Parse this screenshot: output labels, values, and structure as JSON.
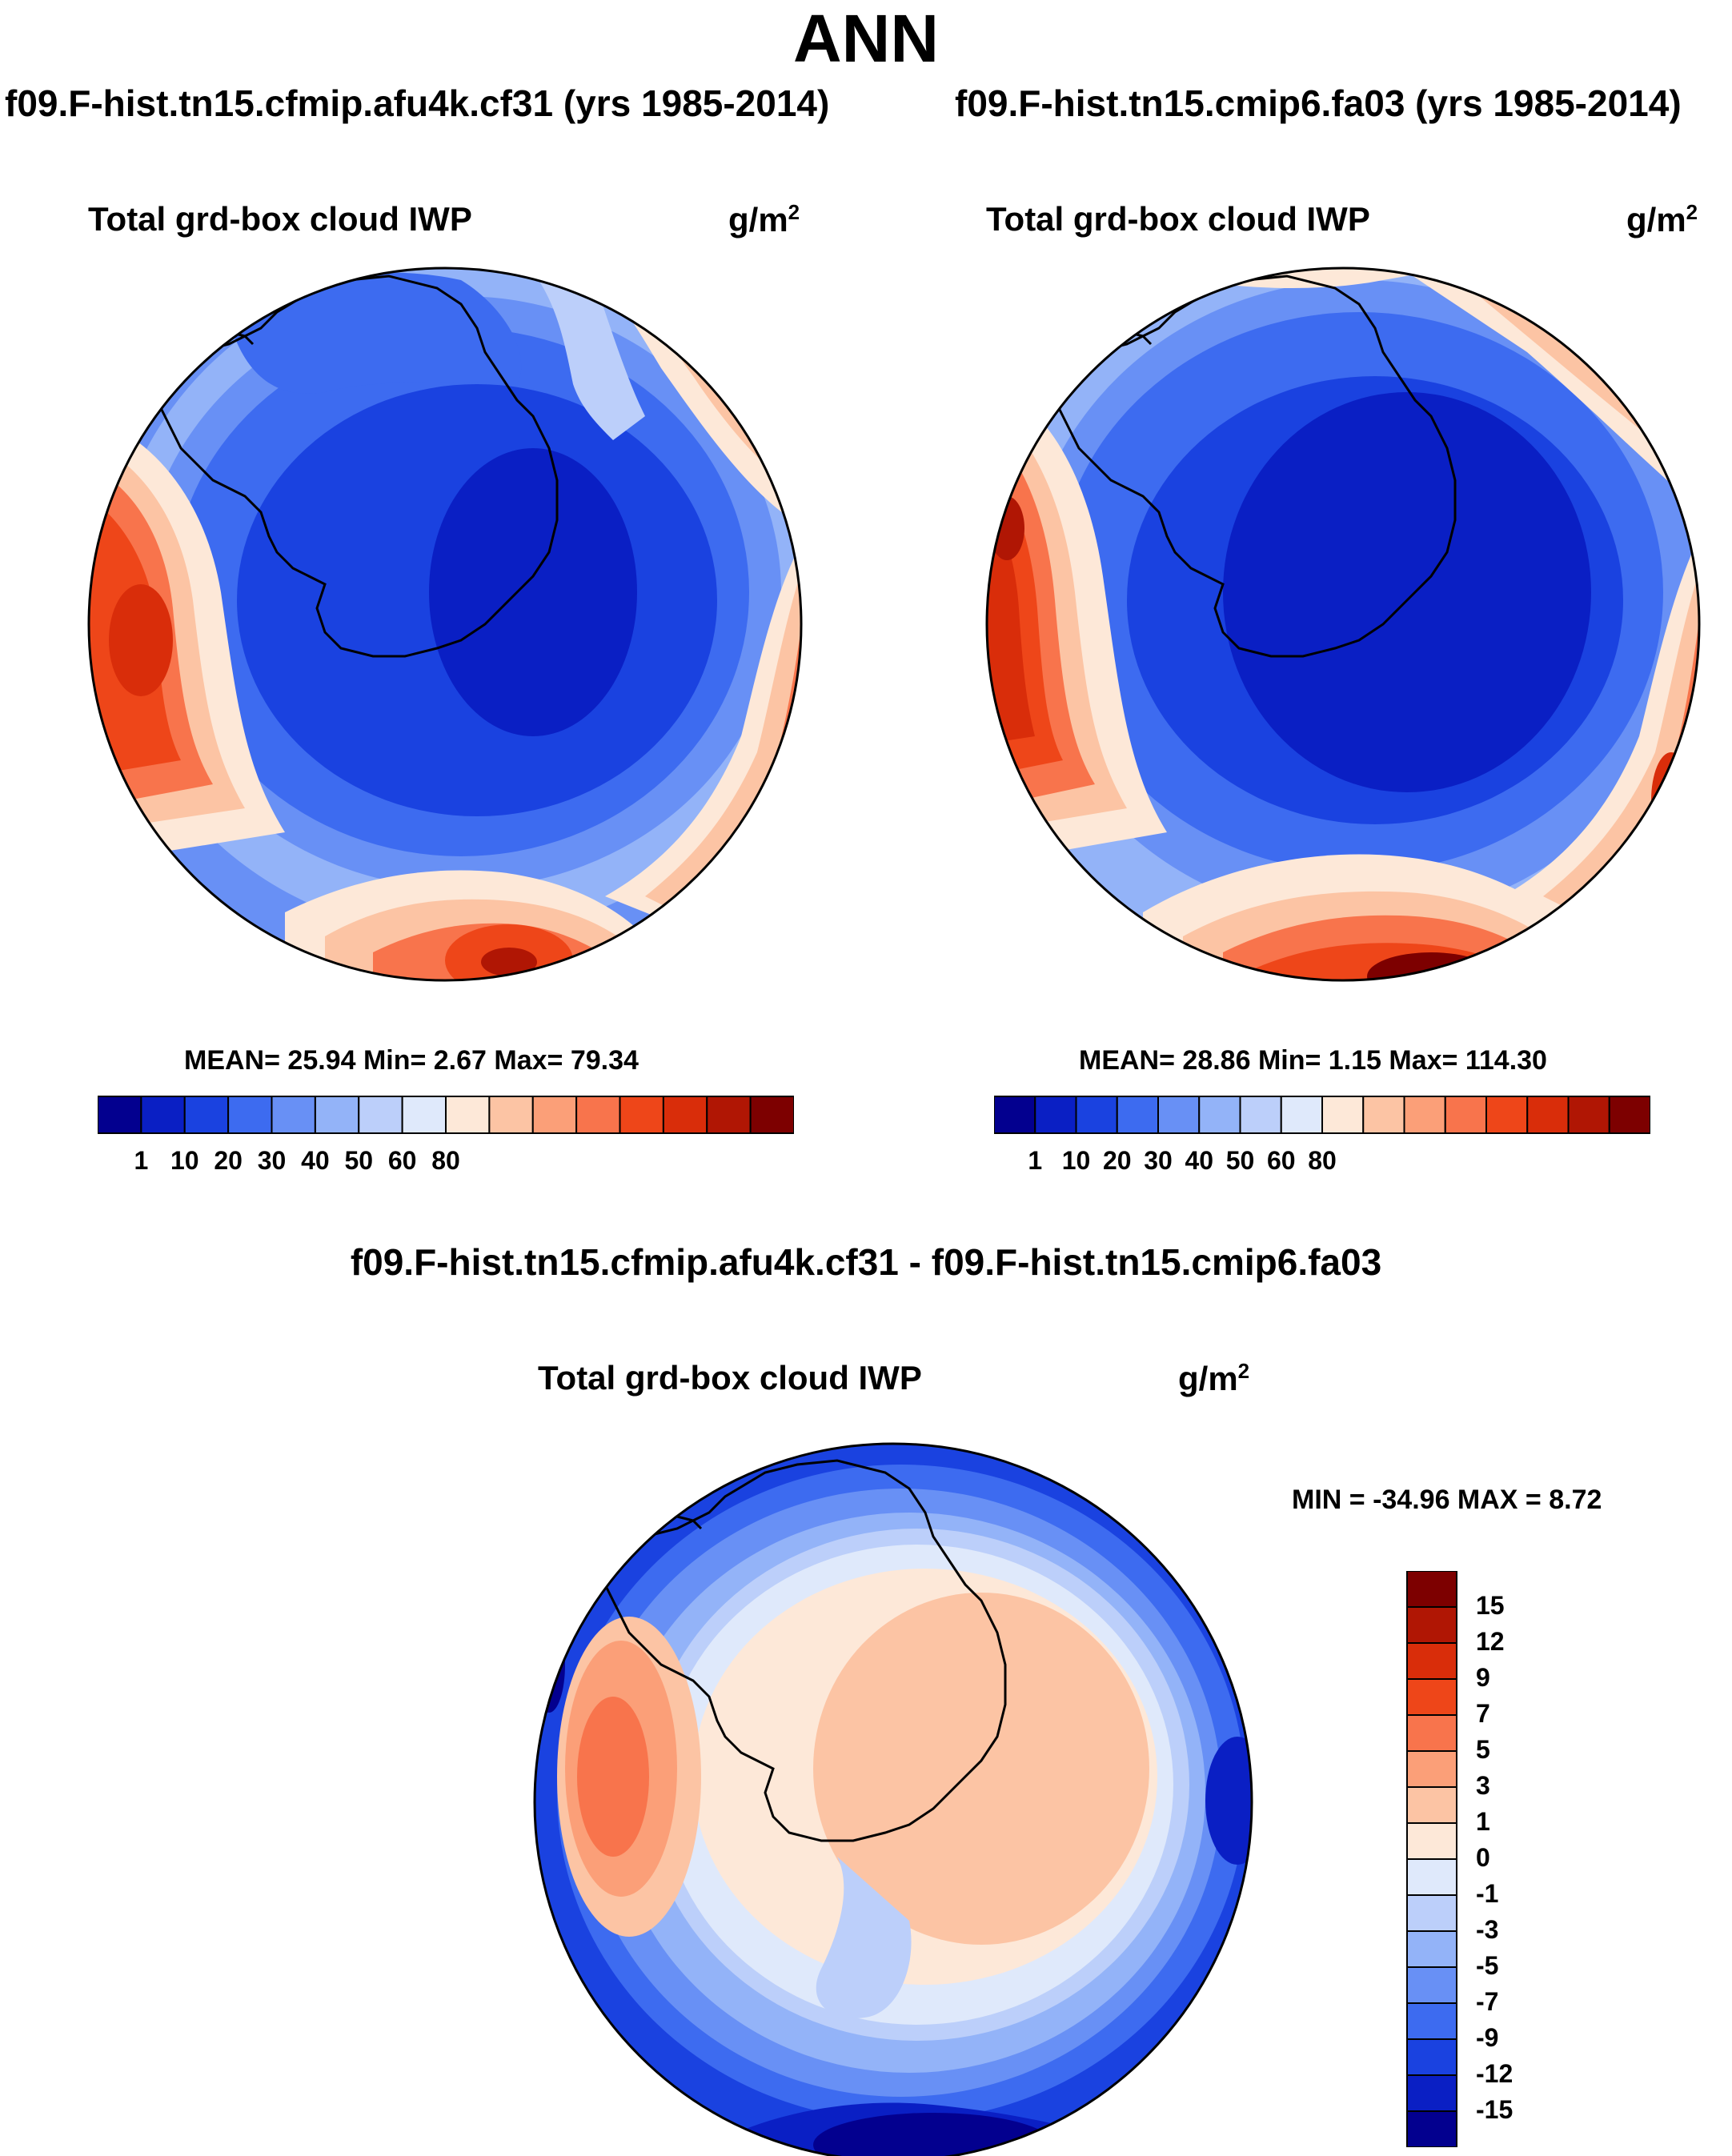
{
  "title": "ANN",
  "panels": [
    {
      "case": "f09.F-hist.tn15.cfmip.afu4k.cf31 (yrs 1985-2014)",
      "variable": "Total grd-box cloud IWP",
      "units_base": "g/m",
      "units_exp": "2",
      "stats": "MEAN=  25.94  Min=   2.67  Max=  79.34",
      "colorbar_ticks": [
        "1",
        "10",
        "20",
        "30",
        "40",
        "50",
        "60",
        "80"
      ],
      "colorbar_colors": [
        "#03008f",
        "#0a1fc4",
        "#1a42e0",
        "#3d6bf0",
        "#6890f5",
        "#93b3f8",
        "#bccffa",
        "#dfe9fb",
        "#fde8d8",
        "#fcc4a4",
        "#fb9f78",
        "#f8744c",
        "#ee4619",
        "#d92d0a",
        "#b01604",
        "#7d0000"
      ],
      "features": [
        "Antarctica coastline"
      ]
    },
    {
      "case": "f09.F-hist.tn15.cmip6.fa03 (yrs 1985-2014)",
      "variable": "Total grd-box cloud IWP",
      "units_base": "g/m",
      "units_exp": "2",
      "stats": "MEAN=  28.86  Min=   1.15  Max= 114.30",
      "colorbar_ticks": [
        "1",
        "10",
        "20",
        "30",
        "40",
        "50",
        "60",
        "80"
      ],
      "colorbar_colors": [
        "#03008f",
        "#0a1fc4",
        "#1a42e0",
        "#3d6bf0",
        "#6890f5",
        "#93b3f8",
        "#bccffa",
        "#dfe9fb",
        "#fde8d8",
        "#fcc4a4",
        "#fb9f78",
        "#f8744c",
        "#ee4619",
        "#d92d0a",
        "#b01604",
        "#7d0000"
      ],
      "features": [
        "Antarctica coastline"
      ]
    }
  ],
  "diff": {
    "case": "f09.F-hist.tn15.cfmip.afu4k.cf31 - f09.F-hist.tn15.cmip6.fa03",
    "variable": "Total grd-box cloud IWP",
    "units_base": "g/m",
    "units_exp": "2",
    "stats": "MIN = -34.96 MAX =   8.72",
    "colorbar_ticks": [
      "15",
      "12",
      "9",
      "7",
      "5",
      "3",
      "1",
      "0",
      "-1",
      "-3",
      "-5",
      "-7",
      "-9",
      "-12",
      "-15"
    ],
    "colorbar_colors": [
      "#7d0000",
      "#b01604",
      "#d92d0a",
      "#ee4619",
      "#f8744c",
      "#fb9f78",
      "#fcc4a4",
      "#fde8d8",
      "#dfe9fb",
      "#bccffa",
      "#93b3f8",
      "#6890f5",
      "#3d6bf0",
      "#1a42e0",
      "#0a1fc4",
      "#03008f"
    ],
    "features": [
      "Antarctica coastline"
    ]
  }
}
